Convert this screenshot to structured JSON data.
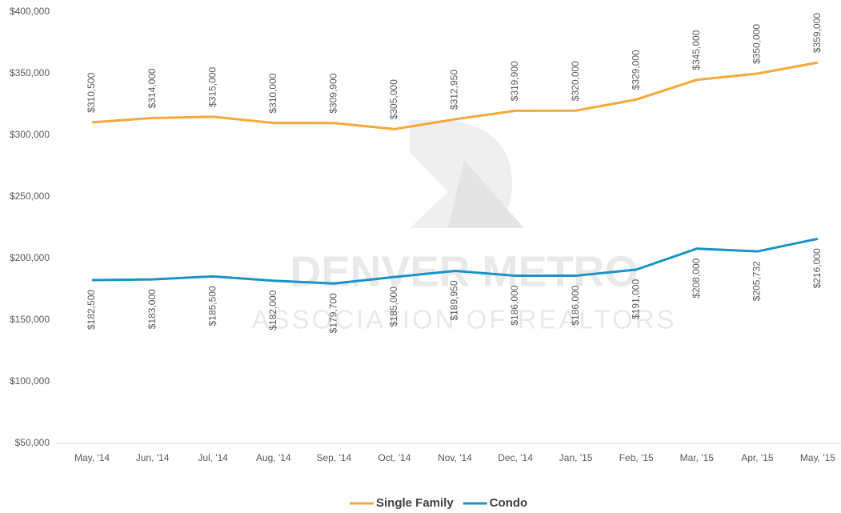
{
  "chart_data": {
    "type": "line",
    "watermark": [
      "DENVER METRO",
      "ASSOCIATION OF REALTORS"
    ],
    "categories": [
      "May, '14",
      "Jun, '14",
      "Jul, '14",
      "Aug, '14",
      "Sep, '14",
      "Oct, '14",
      "Nov, '14",
      "Dec, '14",
      "Jan, '15",
      "Feb, '15",
      "Mar, '15",
      "Apr, '15",
      "May, '15"
    ],
    "series": [
      {
        "name": "Single Family",
        "color": "#f5a83a",
        "values": [
          310500,
          314000,
          315000,
          310000,
          309900,
          305000,
          312950,
          319900,
          320000,
          329000,
          345000,
          350000,
          359000
        ],
        "value_labels": [
          "$310,500",
          "$314,000",
          "$315,000",
          "$310,000",
          "$309,900",
          "$305,000",
          "$312,950",
          "$319,900",
          "$320,000",
          "$329,000",
          "$345,000",
          "$350,000",
          "$359,000"
        ]
      },
      {
        "name": "Condo",
        "color": "#1b93c7",
        "values": [
          182500,
          183000,
          185500,
          182000,
          179700,
          185000,
          189950,
          186000,
          186000,
          191000,
          208000,
          205732,
          216000
        ],
        "value_labels": [
          "$182,500",
          "$183,000",
          "$185,500",
          "$182,000",
          "$179,700",
          "$185,000",
          "$189,950",
          "$186,000",
          "$186,000",
          "$191,000",
          "$208,000",
          "$205,732",
          "$216,000"
        ]
      }
    ],
    "ylim": [
      50000,
      400000
    ],
    "yticks": [
      {
        "value": 50000,
        "label": "$50,000"
      },
      {
        "value": 100000,
        "label": "$100,000"
      },
      {
        "value": 150000,
        "label": "$150,000"
      },
      {
        "value": 200000,
        "label": "$200,000"
      },
      {
        "value": 250000,
        "label": "$250,000"
      },
      {
        "value": 300000,
        "label": "$300,000"
      },
      {
        "value": 350000,
        "label": "$350,000"
      },
      {
        "value": 400000,
        "label": "$400,000"
      }
    ],
    "grid": false,
    "legend": "bottom"
  }
}
